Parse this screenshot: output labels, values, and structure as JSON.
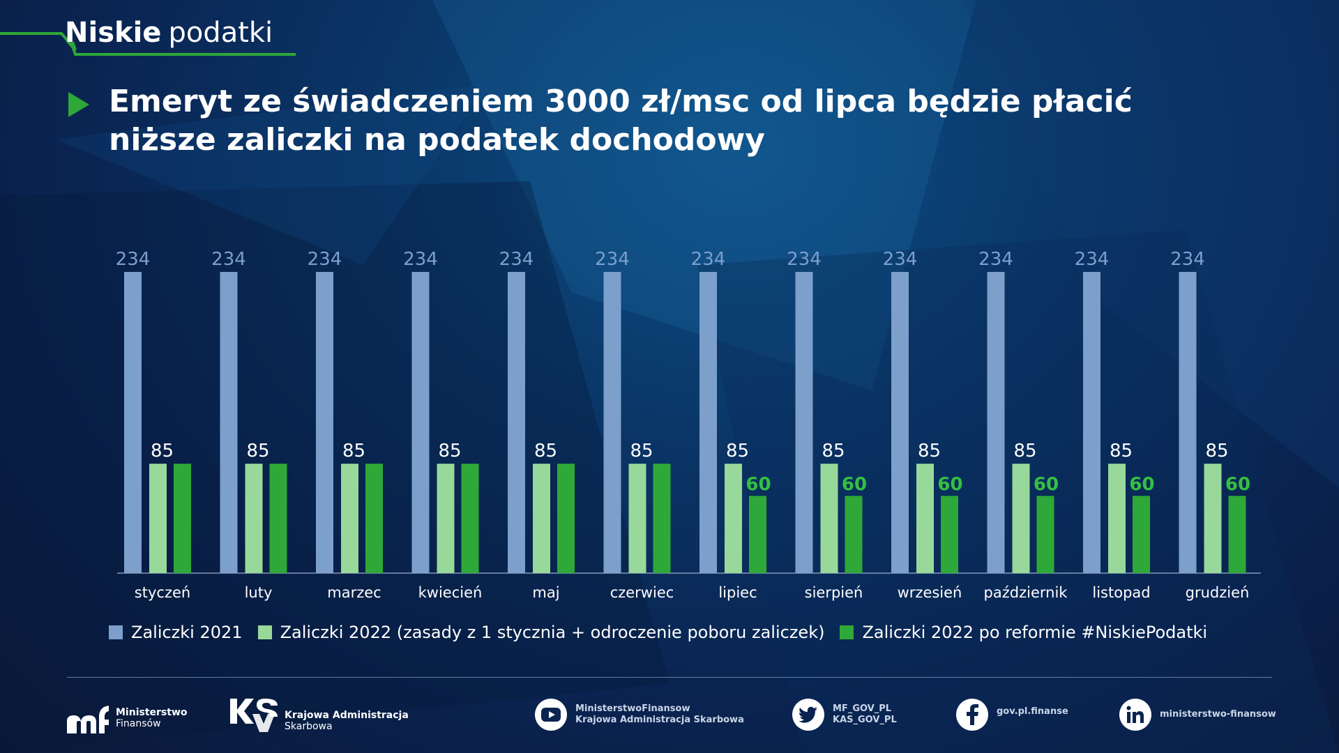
{
  "header": {
    "brand_bold": "Niskie",
    "brand_light": "podatki",
    "title": "Emeryt ze świadczeniem 3000 zł/msc od lipca będzie płacić niższe zaliczki na podatek dochodowy"
  },
  "colors": {
    "series_2021": "#7d9fcc",
    "series_2022": "#98d89a",
    "series_reform": "#2ea838",
    "reform_label": "#33c043",
    "accent_green": "#2ea838"
  },
  "chart_data": {
    "type": "bar",
    "categories": [
      "styczeń",
      "luty",
      "marzec",
      "kwiecień",
      "maj",
      "czerwiec",
      "lipiec",
      "sierpień",
      "wrzesień",
      "październik",
      "listopad",
      "grudzień"
    ],
    "series": [
      {
        "name": "Zaliczki 2021",
        "values": [
          234,
          234,
          234,
          234,
          234,
          234,
          234,
          234,
          234,
          234,
          234,
          234
        ]
      },
      {
        "name": "Zaliczki 2022 (zasady z 1 stycznia + odroczenie poboru zaliczek)",
        "values": [
          85,
          85,
          85,
          85,
          85,
          85,
          85,
          85,
          85,
          85,
          85,
          85
        ]
      },
      {
        "name": "Zaliczki 2022 po reformie #NiskiePodatki",
        "values": [
          85,
          85,
          85,
          85,
          85,
          85,
          60,
          60,
          60,
          60,
          60,
          60
        ]
      }
    ],
    "ylim": [
      0,
      234
    ],
    "legend_position": "bottom",
    "grid": false
  },
  "legend": [
    {
      "label": "Zaliczki 2021",
      "color": "#7d9fcc"
    },
    {
      "label": "Zaliczki 2022 (zasady z 1 stycznia + odroczenie poboru zaliczek)",
      "color": "#98d89a"
    },
    {
      "label": "Zaliczki 2022 po reformie #NiskiePodatki",
      "color": "#2ea838"
    }
  ],
  "footer": {
    "mf_line1": "Ministerstwo",
    "mf_line2": "Finansów",
    "kas_line1": "Krajowa Administracja",
    "kas_line2": "Skarbowa",
    "youtube_line1": "MinisterstwoFinansow",
    "youtube_line2": "Krajowa Administracja Skarbowa",
    "twitter_line1": "MF_GOV_PL",
    "twitter_line2": "KAS_GOV_PL",
    "facebook": "gov.pl.finanse",
    "linkedin": "ministerstwo-finansow"
  }
}
